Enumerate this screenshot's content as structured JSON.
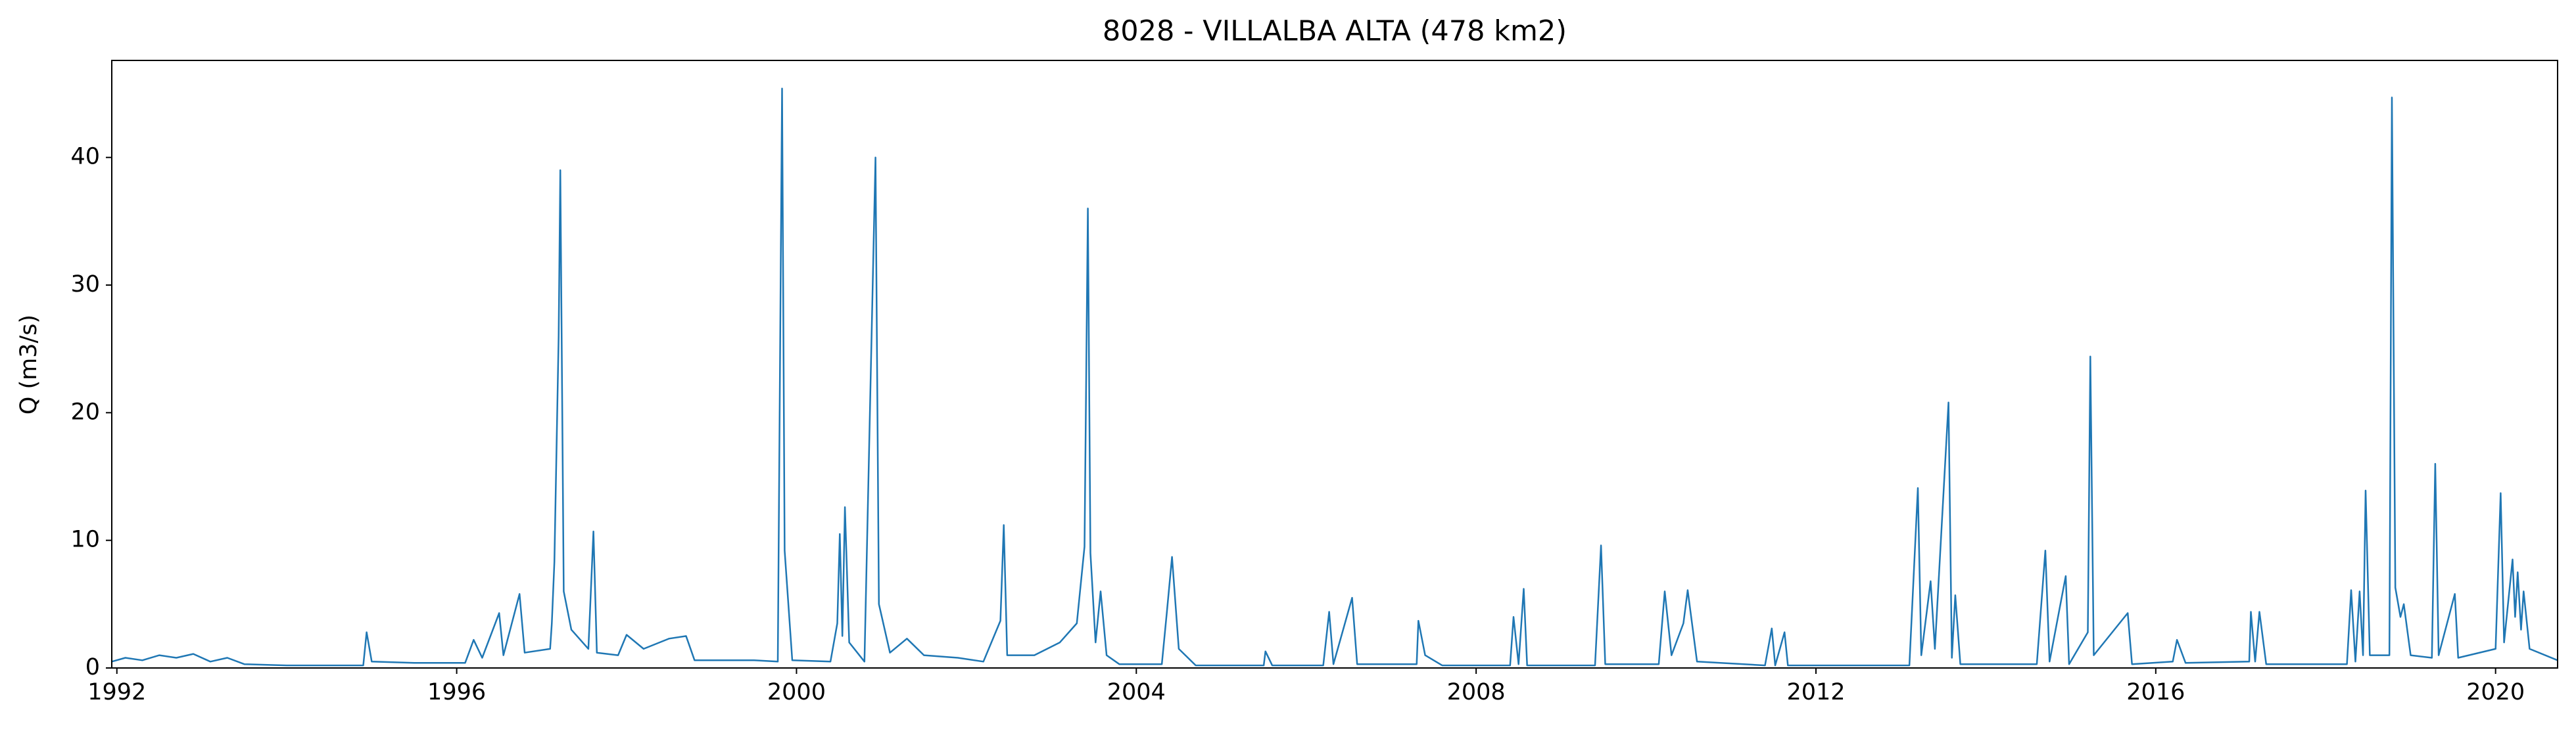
{
  "chart_data": {
    "type": "line",
    "title": "8028 - VILLALBA ALTA (478 km2)",
    "ylabel": "Q (m3/s)",
    "x": [
      1991.94,
      1992.1,
      1992.3,
      1992.5,
      1992.7,
      1992.9,
      1993.1,
      1993.3,
      1993.5,
      1994.0,
      1994.9,
      1994.94,
      1995.0,
      1995.5,
      1996.1,
      1996.2,
      1996.3,
      1996.5,
      1996.55,
      1996.74,
      1996.8,
      1997.1,
      1997.12,
      1997.15,
      1997.2,
      1997.22,
      1997.26,
      1997.35,
      1997.55,
      1997.61,
      1997.65,
      1997.9,
      1998.0,
      1998.2,
      1998.5,
      1998.7,
      1998.8,
      1999.5,
      1999.78,
      1999.83,
      1999.86,
      1999.95,
      2000.4,
      2000.48,
      2000.51,
      2000.54,
      2000.57,
      2000.62,
      2000.8,
      2000.93,
      2000.97,
      2001.1,
      2001.3,
      2001.5,
      2001.9,
      2002.2,
      2002.4,
      2002.44,
      2002.48,
      2002.8,
      2003.1,
      2003.3,
      2003.39,
      2003.43,
      2003.46,
      2003.52,
      2003.58,
      2003.65,
      2003.8,
      2004.3,
      2004.36,
      2004.42,
      2004.5,
      2004.7,
      2005.5,
      2005.52,
      2005.6,
      2006.2,
      2006.27,
      2006.32,
      2006.54,
      2006.6,
      2007.3,
      2007.32,
      2007.4,
      2007.6,
      2008.4,
      2008.44,
      2008.5,
      2008.56,
      2008.6,
      2009.4,
      2009.47,
      2009.52,
      2010.15,
      2010.22,
      2010.3,
      2010.44,
      2010.49,
      2010.6,
      2011.4,
      2011.48,
      2011.52,
      2011.63,
      2011.67,
      2013.1,
      2013.2,
      2013.24,
      2013.35,
      2013.4,
      2013.56,
      2013.6,
      2013.64,
      2013.7,
      2014.6,
      2014.7,
      2014.75,
      2014.94,
      2014.98,
      2015.2,
      2015.23,
      2015.27,
      2015.67,
      2015.72,
      2016.2,
      2016.25,
      2016.35,
      2017.1,
      2017.12,
      2017.17,
      2017.22,
      2017.3,
      2018.25,
      2018.3,
      2018.35,
      2018.4,
      2018.44,
      2018.47,
      2018.52,
      2018.75,
      2018.78,
      2018.82,
      2018.88,
      2018.92,
      2019.0,
      2019.25,
      2019.29,
      2019.33,
      2019.52,
      2019.56,
      2020.0,
      2020.06,
      2020.1,
      2020.2,
      2020.23,
      2020.26,
      2020.3,
      2020.33,
      2020.4,
      2020.73
    ],
    "series": [
      {
        "color": "#1f77b4",
        "values": [
          0.5,
          0.8,
          0.6,
          1.0,
          0.8,
          1.1,
          0.5,
          0.8,
          0.3,
          0.2,
          0.2,
          2.8,
          0.5,
          0.4,
          0.4,
          2.2,
          0.8,
          4.3,
          1.0,
          5.8,
          1.2,
          1.5,
          3.5,
          8.3,
          26,
          39,
          6,
          3,
          1.5,
          10.7,
          1.2,
          1.0,
          2.6,
          1.5,
          2.3,
          2.5,
          0.6,
          0.6,
          0.5,
          45.4,
          9.2,
          0.6,
          0.5,
          3.5,
          10.5,
          2.5,
          12.6,
          2.0,
          0.5,
          40,
          5,
          1.2,
          2.3,
          1.0,
          0.8,
          0.5,
          3.7,
          11.2,
          1.0,
          1.0,
          2.0,
          3.5,
          9.5,
          36,
          9,
          2,
          6,
          1.0,
          0.3,
          0.3,
          4.4,
          8.7,
          1.5,
          0.2,
          0.2,
          1.3,
          0.2,
          0.2,
          4.4,
          0.3,
          5.5,
          0.3,
          0.3,
          3.7,
          1.0,
          0.2,
          0.2,
          4,
          0.3,
          6.2,
          0.2,
          0.2,
          9.6,
          0.3,
          0.3,
          6,
          1.0,
          3.5,
          6.1,
          0.5,
          0.2,
          3.1,
          0.2,
          2.8,
          0.2,
          0.2,
          14.1,
          1.0,
          6.8,
          1.5,
          20.8,
          0.8,
          5.7,
          0.3,
          0.3,
          9.2,
          0.5,
          7.2,
          0.3,
          2.8,
          24.4,
          1.0,
          4.3,
          0.3,
          0.5,
          2.2,
          0.4,
          0.5,
          4.4,
          0.5,
          4.4,
          0.3,
          0.3,
          6.1,
          0.5,
          6,
          1.0,
          13.9,
          1.0,
          1.0,
          44.7,
          6.3,
          4.0,
          5,
          1.0,
          0.8,
          16,
          1.0,
          5.8,
          0.8,
          1.5,
          13.7,
          2,
          8.5,
          4,
          7.5,
          3,
          6,
          1.5,
          0.6
        ]
      }
    ],
    "xlim": [
      1991.94,
      2020.73
    ],
    "xticks": [
      1992,
      1996,
      2000,
      2004,
      2008,
      2012,
      2016,
      2020
    ],
    "ylim": [
      0,
      47.6
    ],
    "yticks": [
      0,
      10,
      20,
      30,
      40
    ],
    "grid": false
  }
}
